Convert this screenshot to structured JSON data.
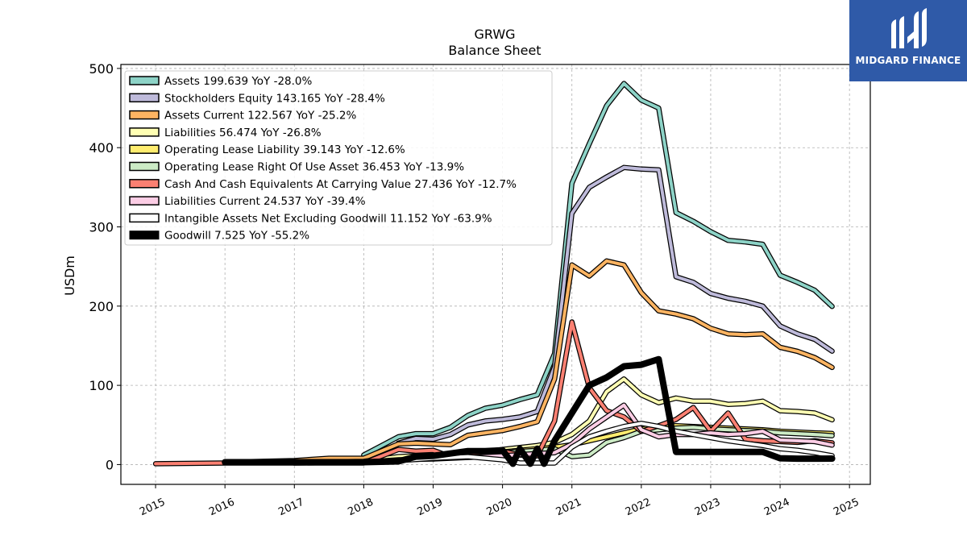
{
  "logo": {
    "brand": "MIDGARD FINANCE"
  },
  "chart_data": {
    "type": "line",
    "title": "GRWG",
    "subtitle": "Balance  Sheet",
    "xlabel": "",
    "ylabel": "USDm",
    "xlim": [
      2014.5,
      2025.3
    ],
    "ylim": [
      -25,
      505
    ],
    "grid": true,
    "legend_position": "top-left",
    "x_ticks": [
      "2015",
      "2016",
      "2017",
      "2018",
      "2019",
      "2020",
      "2021",
      "2022",
      "2023",
      "2024",
      "2025"
    ],
    "y_ticks": [
      "0",
      "100",
      "200",
      "300",
      "400",
      "500"
    ],
    "series": [
      {
        "name": "Assets",
        "label": "Assets  199.639 YoY -28.0%",
        "color": "#8dd3c7",
        "width": 4,
        "points": [
          [
            2018.0,
            12
          ],
          [
            2018.5,
            35
          ],
          [
            2018.75,
            39
          ],
          [
            2019.0,
            39
          ],
          [
            2019.25,
            47
          ],
          [
            2019.5,
            62
          ],
          [
            2019.75,
            71
          ],
          [
            2020.0,
            75
          ],
          [
            2020.25,
            82
          ],
          [
            2020.5,
            88
          ],
          [
            2020.75,
            140
          ],
          [
            2021.0,
            355
          ],
          [
            2021.25,
            405
          ],
          [
            2021.5,
            453
          ],
          [
            2021.75,
            481
          ],
          [
            2022.0,
            460
          ],
          [
            2022.25,
            450
          ],
          [
            2022.5,
            318
          ],
          [
            2022.75,
            307
          ],
          [
            2023.0,
            294
          ],
          [
            2023.25,
            283
          ],
          [
            2023.5,
            281
          ],
          [
            2023.75,
            278
          ],
          [
            2024.0,
            239
          ],
          [
            2024.25,
            230
          ],
          [
            2024.5,
            220
          ],
          [
            2024.75,
            199.639
          ]
        ]
      },
      {
        "name": "Stockholders Equity",
        "label": "Stockholders Equity  143.165 YoY -28.4%",
        "color": "#bebada",
        "width": 4,
        "points": [
          [
            2018.5,
            27
          ],
          [
            2018.75,
            33
          ],
          [
            2019.0,
            32
          ],
          [
            2019.25,
            38
          ],
          [
            2019.5,
            50
          ],
          [
            2019.75,
            55
          ],
          [
            2020.0,
            57
          ],
          [
            2020.25,
            60
          ],
          [
            2020.5,
            67
          ],
          [
            2020.75,
            123
          ],
          [
            2021.0,
            317
          ],
          [
            2021.25,
            350
          ],
          [
            2021.5,
            363
          ],
          [
            2021.75,
            375
          ],
          [
            2022.0,
            373
          ],
          [
            2022.25,
            372
          ],
          [
            2022.5,
            237
          ],
          [
            2022.75,
            230
          ],
          [
            2023.0,
            216
          ],
          [
            2023.25,
            210
          ],
          [
            2023.5,
            206
          ],
          [
            2023.75,
            200
          ],
          [
            2024.0,
            175
          ],
          [
            2024.25,
            165
          ],
          [
            2024.5,
            158
          ],
          [
            2024.75,
            143.165
          ]
        ]
      },
      {
        "name": "Assets Current",
        "label": "Assets Current  122.567 YoY -25.2%",
        "color": "#fdb462",
        "width": 4,
        "points": [
          [
            2016.0,
            3
          ],
          [
            2017.0,
            5
          ],
          [
            2017.5,
            8
          ],
          [
            2018.0,
            8
          ],
          [
            2018.5,
            26
          ],
          [
            2018.75,
            27
          ],
          [
            2019.0,
            26
          ],
          [
            2019.25,
            25
          ],
          [
            2019.5,
            37
          ],
          [
            2019.75,
            40
          ],
          [
            2020.0,
            43
          ],
          [
            2020.25,
            48
          ],
          [
            2020.5,
            54
          ],
          [
            2020.75,
            108
          ],
          [
            2021.0,
            252
          ],
          [
            2021.25,
            238
          ],
          [
            2021.5,
            257
          ],
          [
            2021.75,
            252
          ],
          [
            2022.0,
            217
          ],
          [
            2022.25,
            194
          ],
          [
            2022.5,
            190
          ],
          [
            2022.75,
            184
          ],
          [
            2023.0,
            172
          ],
          [
            2023.25,
            165
          ],
          [
            2023.5,
            164
          ],
          [
            2023.75,
            165
          ],
          [
            2024.0,
            148
          ],
          [
            2024.25,
            143
          ],
          [
            2024.5,
            135
          ],
          [
            2024.75,
            122.567
          ]
        ]
      },
      {
        "name": "Liabilities",
        "label": "Liabilities  56.474 YoY -26.8%",
        "color": "#ffffb3",
        "width": 4,
        "points": [
          [
            2017.0,
            3
          ],
          [
            2018.0,
            4
          ],
          [
            2018.5,
            10
          ],
          [
            2019.0,
            12
          ],
          [
            2019.5,
            14
          ],
          [
            2020.0,
            19
          ],
          [
            2020.5,
            24
          ],
          [
            2020.75,
            28
          ],
          [
            2021.0,
            38
          ],
          [
            2021.25,
            55
          ],
          [
            2021.5,
            92
          ],
          [
            2021.75,
            108
          ],
          [
            2022.0,
            88
          ],
          [
            2022.25,
            78
          ],
          [
            2022.5,
            84
          ],
          [
            2022.75,
            80
          ],
          [
            2023.0,
            80
          ],
          [
            2023.25,
            76
          ],
          [
            2023.5,
            77
          ],
          [
            2023.75,
            80
          ],
          [
            2024.0,
            68
          ],
          [
            2024.25,
            67
          ],
          [
            2024.5,
            65
          ],
          [
            2024.75,
            56.474
          ]
        ]
      },
      {
        "name": "Operating Lease Liability",
        "label": "Operating Lease Liability  39.143 YoY -12.6%",
        "color": "#ffed6f",
        "width": 4,
        "points": [
          [
            2019.0,
            8
          ],
          [
            2019.5,
            13
          ],
          [
            2020.0,
            16
          ],
          [
            2020.5,
            20
          ],
          [
            2020.75,
            22
          ],
          [
            2021.0,
            25
          ],
          [
            2021.25,
            30
          ],
          [
            2021.5,
            35
          ],
          [
            2021.75,
            40
          ],
          [
            2022.0,
            45
          ],
          [
            2022.25,
            48
          ],
          [
            2022.5,
            49
          ],
          [
            2022.75,
            48
          ],
          [
            2023.0,
            47
          ],
          [
            2023.25,
            46
          ],
          [
            2023.5,
            45
          ],
          [
            2023.75,
            44
          ],
          [
            2024.0,
            42
          ],
          [
            2024.25,
            41
          ],
          [
            2024.5,
            40
          ],
          [
            2024.75,
            39.143
          ]
        ]
      },
      {
        "name": "Operating Lease Right Of Use Asset",
        "label": "Operating Lease Right Of Use Asset  36.453 YoY -13.9%",
        "color": "#ccebc5",
        "width": 4,
        "points": [
          [
            2019.0,
            7
          ],
          [
            2019.5,
            12
          ],
          [
            2020.0,
            15
          ],
          [
            2020.5,
            18
          ],
          [
            2020.75,
            20
          ],
          [
            2021.0,
            10
          ],
          [
            2021.25,
            12
          ],
          [
            2021.5,
            28
          ],
          [
            2021.75,
            34
          ],
          [
            2022.0,
            42
          ],
          [
            2022.25,
            44
          ],
          [
            2022.5,
            46
          ],
          [
            2022.75,
            47
          ],
          [
            2023.0,
            45
          ],
          [
            2023.25,
            44
          ],
          [
            2023.5,
            43
          ],
          [
            2023.75,
            42
          ],
          [
            2024.0,
            40
          ],
          [
            2024.25,
            39
          ],
          [
            2024.5,
            38
          ],
          [
            2024.75,
            36.453
          ]
        ]
      },
      {
        "name": "Cash And Cash Equivalents At Carrying Value",
        "label": "Cash And Cash Equivalents At Carrying Value  27.436 YoY -12.7%",
        "color": "#fb8072",
        "width": 4,
        "points": [
          [
            2015.0,
            1
          ],
          [
            2016.0,
            2
          ],
          [
            2017.0,
            2
          ],
          [
            2018.0,
            2
          ],
          [
            2018.5,
            19
          ],
          [
            2018.75,
            17
          ],
          [
            2019.0,
            18
          ],
          [
            2019.25,
            10
          ],
          [
            2019.5,
            12
          ],
          [
            2019.75,
            16
          ],
          [
            2020.0,
            17
          ],
          [
            2020.25,
            12
          ],
          [
            2020.5,
            11
          ],
          [
            2020.75,
            55
          ],
          [
            2021.0,
            180
          ],
          [
            2021.25,
            97
          ],
          [
            2021.5,
            68
          ],
          [
            2021.75,
            60
          ],
          [
            2022.0,
            42
          ],
          [
            2022.25,
            49
          ],
          [
            2022.5,
            57
          ],
          [
            2022.75,
            72
          ],
          [
            2023.0,
            42
          ],
          [
            2023.25,
            65
          ],
          [
            2023.5,
            32
          ],
          [
            2023.75,
            30
          ],
          [
            2024.0,
            29
          ],
          [
            2024.25,
            28
          ],
          [
            2024.5,
            30
          ],
          [
            2024.75,
            27.436
          ]
        ]
      },
      {
        "name": "Liabilities Current",
        "label": "Liabilities Current  24.537 YoY -39.4%",
        "color": "#fccde5",
        "width": 4,
        "points": [
          [
            2017.0,
            2
          ],
          [
            2018.0,
            3
          ],
          [
            2018.5,
            6
          ],
          [
            2019.0,
            7
          ],
          [
            2019.5,
            9
          ],
          [
            2020.0,
            11
          ],
          [
            2020.5,
            14
          ],
          [
            2020.75,
            15
          ],
          [
            2021.0,
            26
          ],
          [
            2021.25,
            45
          ],
          [
            2021.5,
            60
          ],
          [
            2021.75,
            75
          ],
          [
            2022.0,
            44
          ],
          [
            2022.25,
            35
          ],
          [
            2022.5,
            38
          ],
          [
            2022.75,
            38
          ],
          [
            2023.0,
            40
          ],
          [
            2023.25,
            38
          ],
          [
            2023.5,
            39
          ],
          [
            2023.75,
            42
          ],
          [
            2024.0,
            31
          ],
          [
            2024.25,
            30
          ],
          [
            2024.5,
            29
          ],
          [
            2024.75,
            24.537
          ]
        ]
      },
      {
        "name": "Intangible Assets Net Excluding Goodwill",
        "label": "Intangible Assets Net Excluding Goodwill  11.152 YoY -63.9%",
        "color": "#ffffff",
        "width": 4,
        "points": [
          [
            2016.0,
            3
          ],
          [
            2018.0,
            3
          ],
          [
            2018.5,
            5
          ],
          [
            2019.0,
            8
          ],
          [
            2019.5,
            10
          ],
          [
            2020.0,
            6
          ],
          [
            2020.25,
            2
          ],
          [
            2020.5,
            2
          ],
          [
            2020.75,
            2
          ],
          [
            2021.0,
            22
          ],
          [
            2021.25,
            35
          ],
          [
            2021.5,
            42
          ],
          [
            2021.75,
            48
          ],
          [
            2022.0,
            52
          ],
          [
            2022.25,
            48
          ],
          [
            2022.5,
            42
          ],
          [
            2022.75,
            38
          ],
          [
            2023.0,
            34
          ],
          [
            2023.25,
            30
          ],
          [
            2023.5,
            27
          ],
          [
            2023.75,
            24
          ],
          [
            2024.0,
            20
          ],
          [
            2024.25,
            18
          ],
          [
            2024.5,
            15
          ],
          [
            2024.75,
            11.152
          ]
        ]
      },
      {
        "name": "Goodwill",
        "label": "Goodwill  7.525 YoY -55.2%",
        "color": "#000000",
        "width": 8,
        "points": [
          [
            2016.0,
            3
          ],
          [
            2018.0,
            3
          ],
          [
            2018.5,
            4
          ],
          [
            2018.75,
            10
          ],
          [
            2019.0,
            11
          ],
          [
            2019.25,
            14
          ],
          [
            2019.5,
            17
          ],
          [
            2019.75,
            17
          ],
          [
            2020.0,
            18
          ],
          [
            2020.15,
            1
          ],
          [
            2020.25,
            20
          ],
          [
            2020.4,
            1
          ],
          [
            2020.5,
            20
          ],
          [
            2020.6,
            1
          ],
          [
            2020.75,
            30
          ],
          [
            2021.0,
            65
          ],
          [
            2021.25,
            100
          ],
          [
            2021.5,
            110
          ],
          [
            2021.75,
            124
          ],
          [
            2022.0,
            126
          ],
          [
            2022.25,
            133
          ],
          [
            2022.5,
            16
          ],
          [
            2022.75,
            16
          ],
          [
            2023.0,
            16
          ],
          [
            2023.25,
            16
          ],
          [
            2023.5,
            16
          ],
          [
            2023.75,
            16
          ],
          [
            2024.0,
            8
          ],
          [
            2024.25,
            7.5
          ],
          [
            2024.5,
            7.5
          ],
          [
            2024.75,
            7.525
          ]
        ]
      }
    ]
  }
}
